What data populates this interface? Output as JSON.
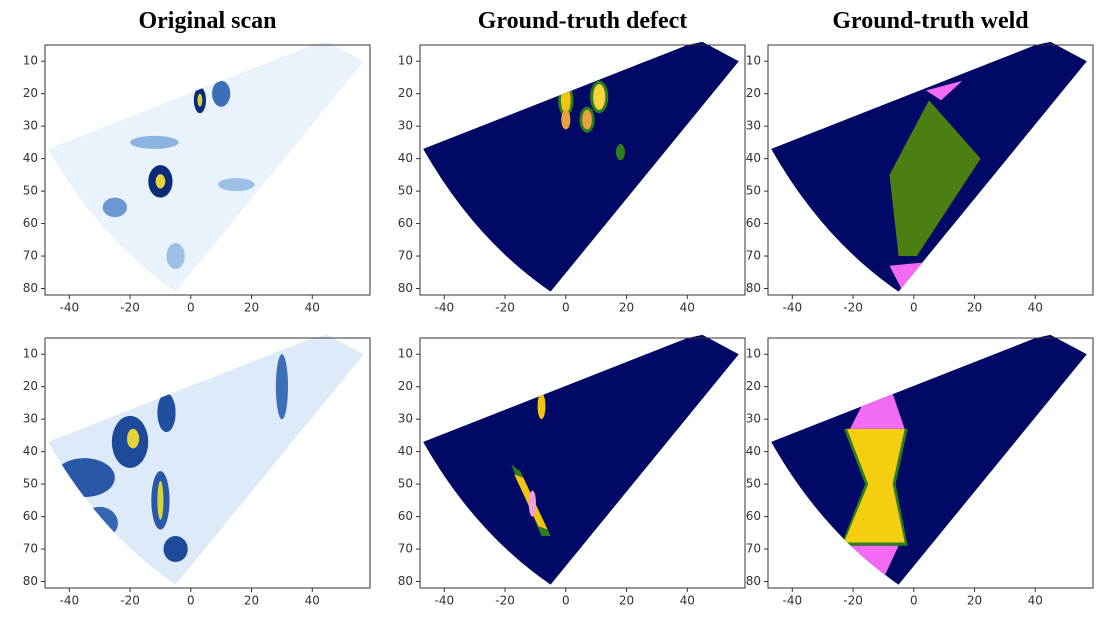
{
  "chart_data": [
    {
      "type": "image",
      "title": "Original scan",
      "xlim": [
        -48,
        59
      ],
      "ylim": [
        82,
        5
      ],
      "xticks": [
        -40,
        -20,
        0,
        20,
        40
      ],
      "yticks": [
        10,
        20,
        30,
        40,
        50,
        60,
        70,
        80
      ]
    },
    {
      "type": "image",
      "title": "Ground-truth defect",
      "xlim": [
        -48,
        59
      ],
      "ylim": [
        82,
        5
      ],
      "xticks": [
        -40,
        -20,
        0,
        20,
        40
      ],
      "yticks": [
        10,
        20,
        30,
        40,
        50,
        60,
        70,
        80
      ]
    },
    {
      "type": "image",
      "title": "Ground-truth weld",
      "xlim": [
        -48,
        59
      ],
      "ylim": [
        82,
        5
      ],
      "xticks": [
        -40,
        -20,
        0,
        20,
        40
      ],
      "yticks": [
        10,
        20,
        30,
        40,
        50,
        60,
        70,
        80
      ]
    },
    {
      "type": "image",
      "xlim": [
        -48,
        59
      ],
      "ylim": [
        82,
        5
      ],
      "xticks": [
        -40,
        -20,
        0,
        20,
        40
      ],
      "yticks": [
        10,
        20,
        30,
        40,
        50,
        60,
        70,
        80
      ]
    },
    {
      "type": "image",
      "xlim": [
        -48,
        59
      ],
      "ylim": [
        82,
        5
      ],
      "xticks": [
        -40,
        -20,
        0,
        20,
        40
      ],
      "yticks": [
        10,
        20,
        30,
        40,
        50,
        60,
        70,
        80
      ]
    },
    {
      "type": "image",
      "xlim": [
        -48,
        59
      ],
      "ylim": [
        82,
        5
      ],
      "xticks": [
        -40,
        -20,
        0,
        20,
        40
      ],
      "yticks": [
        10,
        20,
        30,
        40,
        50,
        60,
        70,
        80
      ]
    }
  ]
}
